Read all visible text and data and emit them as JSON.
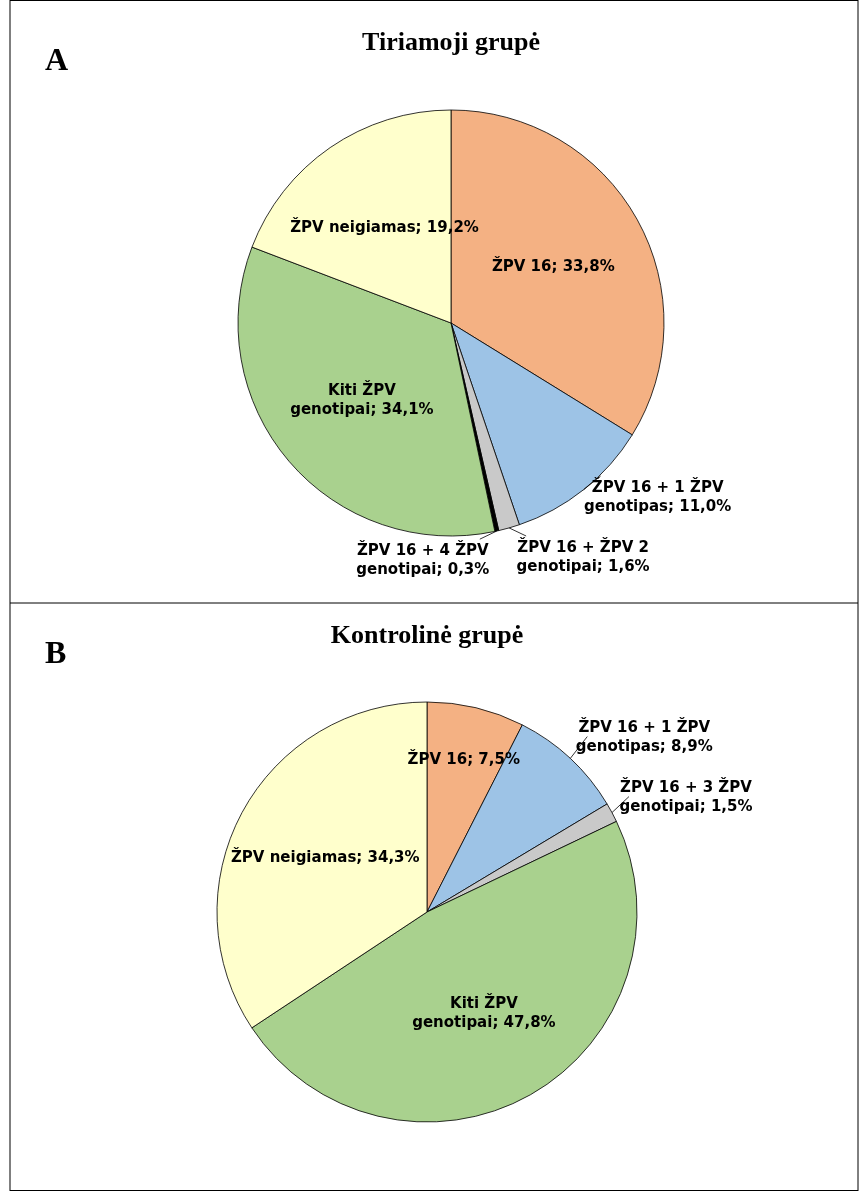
{
  "chart_data": [
    {
      "type": "pie",
      "title": "Tiriamoji grupė",
      "annotations": [
        "A"
      ],
      "categories": [
        "ŽPV 16",
        "ŽPV 16 + 1 ŽPV genotipas",
        "ŽPV 16 + ŽPV 2 genotipai",
        "ŽPV 16 + 4 ŽPV genotipai",
        "Kiti ŽPV genotipai",
        "ŽPV neigiamas"
      ],
      "values": [
        33.8,
        11.0,
        1.6,
        0.3,
        34.1,
        19.2
      ],
      "value_labels": [
        "33,8%",
        "11,0%",
        "1,6%",
        "0,3%",
        "34,1%",
        "19,2%"
      ],
      "colors": [
        "#f4b183",
        "#9dc3e6",
        "#c9c9c9",
        "#000000",
        "#a9d18e",
        "#ffffcc"
      ]
    },
    {
      "type": "pie",
      "title": "Kontrolinė grupė",
      "annotations": [
        "B"
      ],
      "categories": [
        "ŽPV 16",
        "ŽPV 16 + 1 ŽPV genotipas",
        "ŽPV 16 + 3 ŽPV genotipai",
        "Kiti ŽPV genotipai",
        "ŽPV neigiamas"
      ],
      "values": [
        7.5,
        8.9,
        1.5,
        47.8,
        34.3
      ],
      "value_labels": [
        "7,5%",
        "8,9%",
        "1,5%",
        "47,8%",
        "34,3%"
      ],
      "colors": [
        "#f4b183",
        "#9dc3e6",
        "#c9c9c9",
        "#a9d18e",
        "#ffffcc"
      ]
    }
  ]
}
